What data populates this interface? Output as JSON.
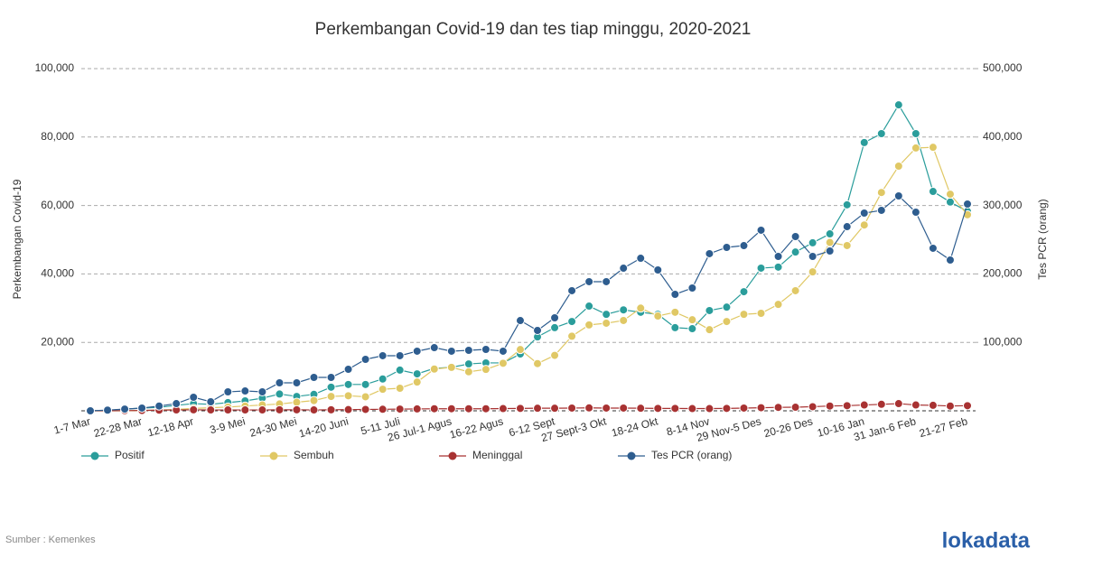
{
  "chart_data": {
    "type": "line",
    "title": "Perkembangan Covid-19 dan tes tiap minggu, 2020-2021",
    "y_label": "Perkembangan Covid-19",
    "y2_label": "Tes PCR (orang)",
    "source": "Sumber : Kemenkes",
    "brand": "lokadata",
    "categories": [
      "1-7 Mar",
      null,
      null,
      "22-28 Mar",
      null,
      null,
      "12-18 Apr",
      null,
      null,
      "3-9 Mei",
      null,
      null,
      "24-30 Mei",
      null,
      null,
      "14-20 Juni",
      null,
      null,
      "5-11 Juli",
      null,
      null,
      "26 Jul-1 Agus",
      null,
      null,
      "16-22 Agus",
      null,
      null,
      "6-12 Sept",
      null,
      null,
      "27 Sept-3 Okt",
      null,
      null,
      "18-24 Okt",
      null,
      null,
      "8-14 Nov",
      null,
      null,
      "29 Nov-5 Des",
      null,
      null,
      "20-26 Des",
      null,
      null,
      "10-16 Jan",
      null,
      null,
      "31 Jan-6 Feb",
      null,
      null,
      "21-27 Feb"
    ],
    "ylim": [
      0,
      100000
    ],
    "yticks": [
      {
        "value": 20000,
        "label": "20,000"
      },
      {
        "value": 40000,
        "label": "40,000"
      },
      {
        "value": 60000,
        "label": "60,000"
      },
      {
        "value": 80000,
        "label": "80,000"
      },
      {
        "value": 100000,
        "label": "100,000"
      }
    ],
    "y2lim": [
      0,
      500000
    ],
    "y2ticks": [
      {
        "value": 100000,
        "label": "100,000"
      },
      {
        "value": 200000,
        "label": "200,000"
      },
      {
        "value": 300000,
        "label": "300,000"
      },
      {
        "value": 400000,
        "label": "400,000"
      },
      {
        "value": 500000,
        "label": "500,000"
      }
    ],
    "grid": true,
    "legend": "bottom",
    "series": [
      {
        "name": "Positif",
        "color": "#2a9d9b",
        "values": [
          0,
          100,
          500,
          800,
          1000,
          1600,
          2100,
          1900,
          2400,
          2900,
          3700,
          4900,
          4200,
          4800,
          6900,
          7700,
          7700,
          9300,
          11900,
          10800,
          12400,
          12700,
          13700,
          14000,
          14000,
          16600,
          21600,
          24300,
          26100,
          30600,
          28200,
          29500,
          28800,
          28200,
          24300,
          24000,
          29300,
          30300,
          34800,
          41700,
          42000,
          46400,
          49100,
          51700,
          60200,
          78400,
          81000,
          89400,
          81000,
          64100,
          61000,
          58300
        ]
      },
      {
        "name": "Sembuh",
        "color": "#e0c865",
        "values": [
          0,
          0,
          0,
          100,
          200,
          400,
          700,
          900,
          1100,
          1400,
          1700,
          2000,
          2500,
          3000,
          4200,
          4400,
          4100,
          6300,
          6600,
          8400,
          12200,
          12700,
          11400,
          12100,
          13900,
          17900,
          13800,
          16200,
          21800,
          25100,
          25600,
          26400,
          30000,
          27700,
          28800,
          26600,
          23700,
          26100,
          28200,
          28500,
          31100,
          35100,
          40600,
          49200,
          48300,
          54300,
          63800,
          71500,
          76800,
          77000,
          63300,
          57300
        ]
      },
      {
        "name": "Meninggal",
        "color": "#a83232",
        "values": [
          0,
          10,
          50,
          100,
          200,
          250,
          300,
          250,
          250,
          250,
          250,
          300,
          300,
          250,
          300,
          350,
          400,
          450,
          500,
          550,
          600,
          600,
          600,
          600,
          650,
          700,
          750,
          750,
          800,
          850,
          800,
          800,
          750,
          700,
          700,
          650,
          650,
          700,
          800,
          900,
          1000,
          1050,
          1200,
          1400,
          1500,
          1700,
          1900,
          2100,
          1700,
          1600,
          1400,
          1500
        ]
      },
      {
        "name": "Tes PCR (orang)",
        "color": "#2e5d8f",
        "axis": "y2",
        "values": [
          0,
          1000,
          2500,
          4000,
          7000,
          10500,
          19800,
          13200,
          27700,
          29000,
          27700,
          40900,
          40900,
          48800,
          48800,
          60700,
          75200,
          80500,
          80500,
          87100,
          92300,
          87100,
          88400,
          89700,
          87100,
          131900,
          117400,
          135900,
          175500,
          188700,
          188700,
          208400,
          222900,
          205800,
          170200,
          179400,
          229600,
          238800,
          241400,
          263900,
          225600,
          254600,
          225600,
          233500,
          269100,
          288900,
          292900,
          314000,
          290200,
          237500,
          220300,
          302100
        ]
      }
    ]
  }
}
